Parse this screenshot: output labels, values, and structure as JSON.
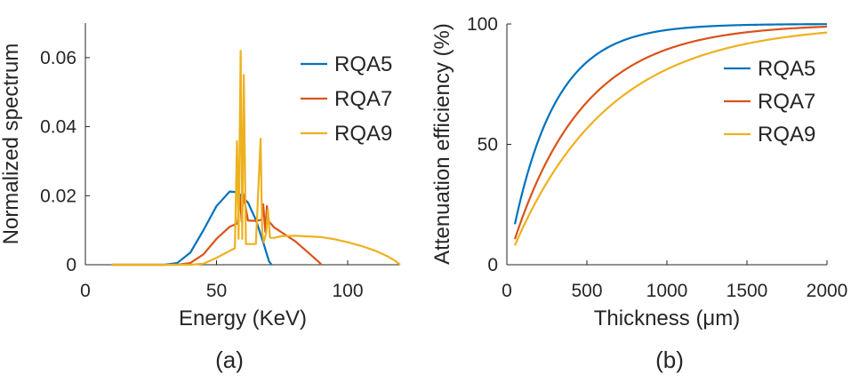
{
  "chart_data": [
    {
      "type": "line",
      "panel_label": "(a)",
      "xlabel": "Energy (KeV)",
      "ylabel": "Normalized spectrum",
      "xlim": [
        0,
        120
      ],
      "ylim": [
        0,
        0.07
      ],
      "xticks": [
        0,
        50,
        100
      ],
      "xtick_labels": [
        "0",
        "50",
        "100"
      ],
      "yticks": [
        0,
        0.02,
        0.04,
        0.06
      ],
      "ytick_labels": [
        "0",
        "0.02",
        "0.04",
        "0.06"
      ],
      "grid": false,
      "legend": "top-right",
      "series": [
        {
          "name": "RQA5",
          "color": "#0072BD",
          "x": [
            10,
            30,
            35,
            40,
            45,
            50,
            55,
            58,
            62,
            65,
            68,
            70,
            71
          ],
          "y": [
            0,
            0,
            0.0005,
            0.0035,
            0.01,
            0.017,
            0.0212,
            0.021,
            0.018,
            0.013,
            0.006,
            0.001,
            0
          ]
        },
        {
          "name": "RQA7",
          "color": "#D95319",
          "x": [
            10,
            35,
            40,
            45,
            50,
            55,
            58,
            59,
            59.6,
            60.2,
            62,
            65,
            67.2,
            67.8,
            68.6,
            69.2,
            70,
            72,
            75,
            80,
            85,
            89,
            90
          ],
          "y": [
            0,
            0,
            0.0005,
            0.003,
            0.0075,
            0.011,
            0.012,
            0.0195,
            0.0125,
            0.0205,
            0.0128,
            0.0127,
            0.013,
            0.0175,
            0.0095,
            0.017,
            0.0125,
            0.0108,
            0.0093,
            0.0068,
            0.0035,
            0.0008,
            0
          ]
        },
        {
          "name": "RQA9",
          "color": "#EDB120",
          "x": [
            10,
            40,
            45,
            50,
            55,
            57,
            57.8,
            58.4,
            59.2,
            59.8,
            60.4,
            61.2,
            65,
            66.8,
            67.4,
            68,
            69,
            69.6,
            70.4,
            72,
            75,
            80,
            85,
            90,
            95,
            100,
            105,
            110,
            115,
            118,
            120
          ],
          "y": [
            0,
            0,
            0.0003,
            0.002,
            0.004,
            0.0048,
            0.0358,
            0.0075,
            0.062,
            0.0075,
            0.055,
            0.006,
            0.006,
            0.0365,
            0.0095,
            0.0065,
            0.0095,
            0.016,
            0.0078,
            0.0078,
            0.0083,
            0.0084,
            0.0082,
            0.008,
            0.0074,
            0.0065,
            0.0055,
            0.0042,
            0.0025,
            0.0012,
            0
          ]
        }
      ]
    },
    {
      "type": "line",
      "panel_label": "(b)",
      "xlabel": "Thickness (μm)",
      "ylabel": "Attenuation efficiency (%)",
      "xlim": [
        0,
        2000
      ],
      "ylim": [
        0,
        100
      ],
      "xticks": [
        0,
        500,
        1000,
        1500,
        2000
      ],
      "xtick_labels": [
        "0",
        "500",
        "1000",
        "1500",
        "2000"
      ],
      "yticks": [
        0,
        50,
        100
      ],
      "ytick_labels": [
        "0",
        "50",
        "100"
      ],
      "grid": false,
      "legend": "right",
      "series": [
        {
          "name": "RQA5",
          "color": "#0072BD",
          "x_start": 50,
          "x_end": 2000,
          "attenuation_coefficient_per_um": 0.00369
        },
        {
          "name": "RQA7",
          "color": "#D95319",
          "x_start": 50,
          "x_end": 2000,
          "attenuation_coefficient_per_um": 0.00225
        },
        {
          "name": "RQA9",
          "color": "#EDB120",
          "x_start": 50,
          "x_end": 2000,
          "attenuation_coefficient_per_um": 0.00167
        }
      ]
    }
  ]
}
